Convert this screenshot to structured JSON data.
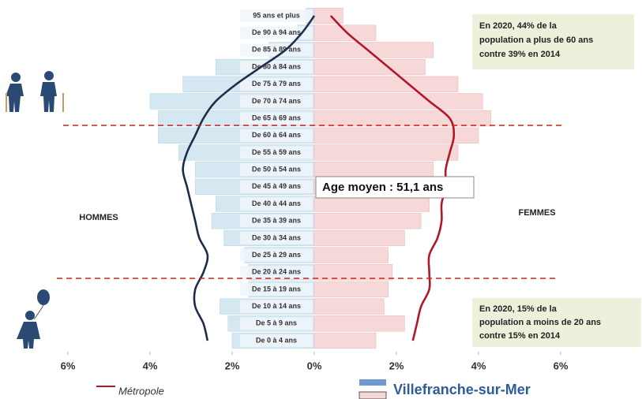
{
  "chart_data": {
    "type": "pyramid",
    "categories": [
      "95 ans et plus",
      "De 90 à 94 ans",
      "De 85 à 89 ans",
      "De 80 à 84 ans",
      "De 75 à 79 ans",
      "De 70 à 74 ans",
      "De 65 à 69 ans",
      "De 60 à 64 ans",
      "De 55 à 59 ans",
      "De 50 à 54 ans",
      "De 45 à 49 ans",
      "De 40 à 44 ans",
      "De 35 à 39 ans",
      "De 30 à 34 ans",
      "De 25 à 29 ans",
      "De 20 à 24 ans",
      "De 15 à 19 ans",
      "De 10 à 14 ans",
      "De 5 à 9 ans",
      "De 0 à 4 ans"
    ],
    "sides": [
      "HOMMES",
      "FEMMES"
    ],
    "series": [
      {
        "name": "Villefranche-sur-Mer",
        "mark": "bar",
        "colors": [
          "#d5e8f2",
          "#f6d8d8"
        ],
        "hommes": [
          0.2,
          0.4,
          1.1,
          2.4,
          3.2,
          4.0,
          3.8,
          3.8,
          3.3,
          2.9,
          2.9,
          2.4,
          2.5,
          2.2,
          1.7,
          1.6,
          1.6,
          2.3,
          2.1,
          2.0
        ],
        "femmes": [
          0.7,
          1.5,
          2.9,
          2.7,
          3.5,
          4.1,
          4.3,
          4.0,
          3.5,
          2.9,
          3.0,
          2.8,
          2.6,
          2.2,
          1.8,
          1.9,
          1.8,
          1.7,
          2.2,
          1.5
        ]
      },
      {
        "name": "Métropole",
        "mark": "line",
        "colors": [
          "#1f2d4d",
          "#b0182a"
        ],
        "hommes": [
          0.0,
          0.3,
          0.7,
          1.3,
          1.9,
          2.4,
          2.7,
          2.9,
          3.1,
          3.2,
          3.1,
          3.0,
          2.9,
          2.8,
          2.6,
          2.7,
          2.9,
          2.9,
          2.7,
          2.6
        ],
        "femmes": [
          0.4,
          0.8,
          1.3,
          1.8,
          2.3,
          2.8,
          3.3,
          3.4,
          3.3,
          3.2,
          3.2,
          3.1,
          3.1,
          3.0,
          2.8,
          2.8,
          2.8,
          2.6,
          2.5,
          2.4
        ]
      }
    ],
    "xlim": [
      -7.6,
      8
    ],
    "xticks": [
      {
        "value": -6,
        "label": "6%"
      },
      {
        "value": -4,
        "label": "4%"
      },
      {
        "value": -2,
        "label": "2%"
      },
      {
        "value": 0,
        "label": "0%"
      },
      {
        "value": 2,
        "label": "2%"
      },
      {
        "value": 4,
        "label": "4%"
      },
      {
        "value": 6,
        "label": "6%"
      }
    ],
    "annotations": {
      "age_moyen": "Age moyen : 51,1 ans",
      "top_note": [
        "En 2020,  44% de la",
        "population a plus de 60 ans",
        "contre 39% en 2014"
      ],
      "bottom_note": [
        "En 2020,  15% de la",
        "population a moins de 20 ans",
        "contre 15% en 2014"
      ]
    }
  }
}
